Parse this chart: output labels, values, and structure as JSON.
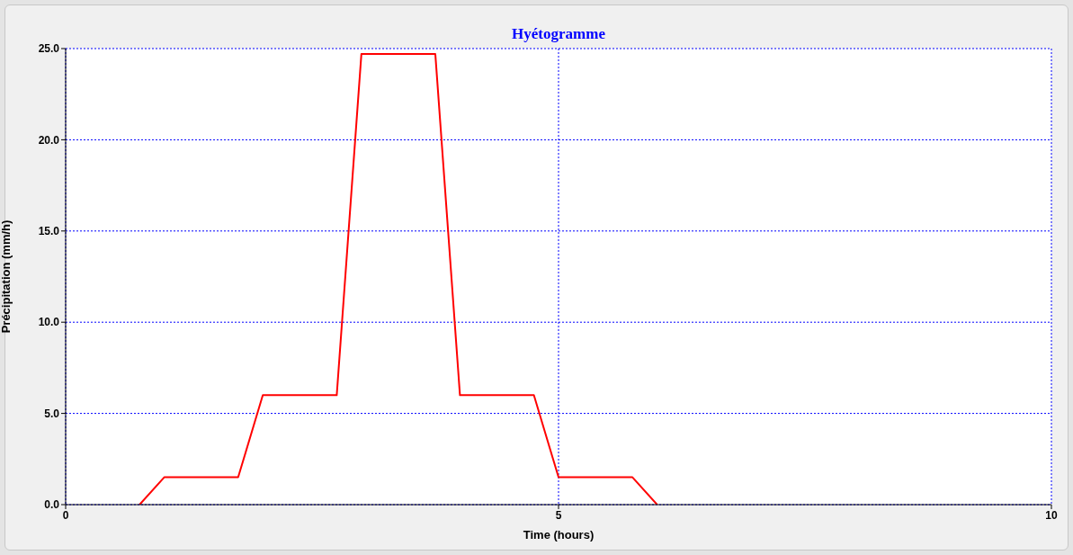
{
  "chart_data": {
    "type": "line",
    "title": "Hyétogramme",
    "xlabel": "Time (hours)",
    "ylabel": "Précipitation (mm/h)",
    "x": [
      0.75,
      1,
      1.75,
      2,
      2.75,
      3,
      3.75,
      4,
      4.75,
      5,
      5.75,
      6
    ],
    "series": [
      {
        "color": "#ff0000",
        "values": [
          0,
          1.5,
          1.5,
          6,
          6,
          24.7,
          24.7,
          6,
          6,
          1.5,
          1.5,
          0
        ]
      }
    ],
    "xlim": [
      0,
      10
    ],
    "xticks": [
      0,
      5,
      10
    ],
    "ylim": [
      0,
      25
    ],
    "yticks": [
      {
        "value": 0,
        "label": "0.0"
      },
      {
        "value": 5,
        "label": "5.0"
      },
      {
        "value": 10,
        "label": "10.0"
      },
      {
        "value": 15,
        "label": "15.0"
      },
      {
        "value": 20,
        "label": "20.0"
      },
      {
        "value": 25,
        "label": "25.0"
      }
    ],
    "grid": true,
    "marker": "none",
    "line_style": "solid",
    "legend": false
  }
}
